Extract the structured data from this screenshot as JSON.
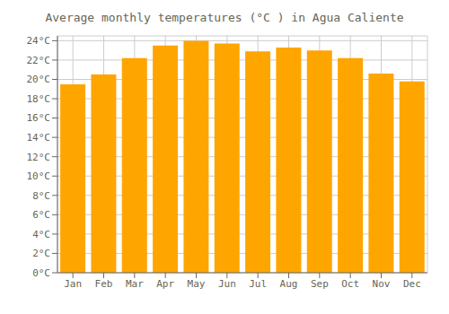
{
  "chart_data": {
    "type": "bar",
    "title": "Average monthly temperatures (°C ) in Agua Caliente",
    "categories": [
      "Jan",
      "Feb",
      "Mar",
      "Apr",
      "May",
      "Jun",
      "Jul",
      "Aug",
      "Sep",
      "Oct",
      "Nov",
      "Dec"
    ],
    "values": [
      19.5,
      20.5,
      22.2,
      23.5,
      24.0,
      23.7,
      22.9,
      23.3,
      23.0,
      22.2,
      20.6,
      19.8
    ],
    "color": "#FFA500",
    "ylim": [
      0,
      24.5
    ],
    "yticks": [
      {
        "value": 0,
        "label": "0°C"
      },
      {
        "value": 2,
        "label": "2°C"
      },
      {
        "value": 4,
        "label": "4°C"
      },
      {
        "value": 6,
        "label": "6°C"
      },
      {
        "value": 8,
        "label": "8°C"
      },
      {
        "value": 10,
        "label": "10°C"
      },
      {
        "value": 12,
        "label": "12°C"
      },
      {
        "value": 14,
        "label": "14°C"
      },
      {
        "value": 16,
        "label": "16°C"
      },
      {
        "value": 18,
        "label": "18°C"
      },
      {
        "value": 20,
        "label": "20°C"
      },
      {
        "value": 22,
        "label": "22°C"
      },
      {
        "value": 24,
        "label": "24°C"
      }
    ],
    "grid": true
  }
}
